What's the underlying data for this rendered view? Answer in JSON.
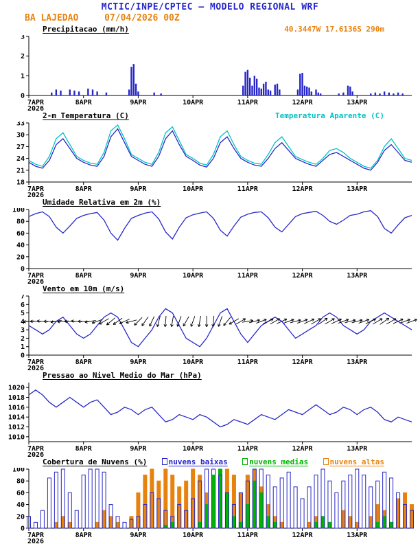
{
  "header": {
    "title": "MCTIC/INPE/CPTEC — MODELO REGIONAL WRF",
    "station": "BA LAJEDAO",
    "run": "07/04/2026 00Z",
    "location": "40.3447W 17.6136S 290m"
  },
  "colors": {
    "blue": "#2626c9",
    "cyan": "#00c2c2",
    "orange": "#e8820e",
    "green": "#00b400",
    "black": "#000000"
  },
  "x_axis": {
    "t_max": 168,
    "step_hours": 3,
    "ticks": [
      {
        "t": 0,
        "label": "7APR",
        "sub": "2026"
      },
      {
        "t": 24,
        "label": "8APR"
      },
      {
        "t": 48,
        "label": "9APR"
      },
      {
        "t": 72,
        "label": "10APR"
      },
      {
        "t": 96,
        "label": "11APR"
      },
      {
        "t": 120,
        "label": "12APR"
      },
      {
        "t": 144,
        "label": "13APR"
      }
    ]
  },
  "chart_data": [
    {
      "type": "bar",
      "title": "Precipitacao (mm/h)",
      "ylabel": "mm/h",
      "ylim": [
        0,
        3
      ],
      "yticks": [
        0,
        1,
        2,
        3
      ],
      "series": [
        {
          "name": "precipitacao",
          "color_key": "blue",
          "points": [
            [
              10,
              0.15
            ],
            [
              12,
              0.3
            ],
            [
              14,
              0.25
            ],
            [
              18,
              0.3
            ],
            [
              20,
              0.25
            ],
            [
              22,
              0.2
            ],
            [
              26,
              0.35
            ],
            [
              28,
              0.3
            ],
            [
              30,
              0.2
            ],
            [
              34,
              0.15
            ],
            [
              44,
              0.3
            ],
            [
              45,
              1.45
            ],
            [
              46,
              1.6
            ],
            [
              47,
              0.6
            ],
            [
              48,
              0.2
            ],
            [
              55,
              0.15
            ],
            [
              58,
              0.1
            ],
            [
              94,
              0.5
            ],
            [
              95,
              1.2
            ],
            [
              96,
              1.3
            ],
            [
              97,
              0.9
            ],
            [
              98,
              0.5
            ],
            [
              99,
              1.0
            ],
            [
              100,
              0.85
            ],
            [
              101,
              0.4
            ],
            [
              102,
              0.35
            ],
            [
              103,
              0.6
            ],
            [
              104,
              0.7
            ],
            [
              105,
              0.3
            ],
            [
              106,
              0.25
            ],
            [
              108,
              0.55
            ],
            [
              109,
              0.6
            ],
            [
              110,
              0.3
            ],
            [
              118,
              0.3
            ],
            [
              119,
              1.1
            ],
            [
              120,
              1.15
            ],
            [
              121,
              0.5
            ],
            [
              122,
              0.45
            ],
            [
              123,
              0.4
            ],
            [
              124,
              0.2
            ],
            [
              126,
              0.3
            ],
            [
              127,
              0.15
            ],
            [
              128,
              0.1
            ],
            [
              136,
              0.1
            ],
            [
              138,
              0.15
            ],
            [
              140,
              0.5
            ],
            [
              141,
              0.45
            ],
            [
              142,
              0.2
            ],
            [
              150,
              0.1
            ],
            [
              152,
              0.15
            ],
            [
              154,
              0.1
            ],
            [
              156,
              0.2
            ],
            [
              158,
              0.15
            ],
            [
              160,
              0.1
            ],
            [
              162,
              0.15
            ],
            [
              164,
              0.1
            ]
          ]
        }
      ]
    },
    {
      "type": "line",
      "title": "2-m Temperatura (C)",
      "right_label": "Temperatura Aparente (C)",
      "ylim": [
        18,
        33
      ],
      "yticks": [
        18,
        21,
        24,
        27,
        30,
        33
      ],
      "series": [
        {
          "name": "temperatura_aparente",
          "color_key": "cyan",
          "values": [
            23.5,
            22.5,
            22,
            24.5,
            29,
            30.5,
            27.5,
            24.5,
            23.5,
            22.8,
            22.5,
            25.5,
            31,
            32.5,
            29,
            25,
            24,
            23,
            22.5,
            25.5,
            30.5,
            32,
            28.5,
            25,
            24,
            22.8,
            22.3,
            25,
            29.5,
            31,
            27.5,
            24.5,
            23.5,
            22.8,
            22.5,
            25,
            28,
            29.5,
            27,
            24.5,
            23.7,
            23,
            22.5,
            24,
            26,
            26.5,
            25.5,
            24,
            23,
            22,
            21.5,
            23.5,
            27,
            29,
            26.5,
            24,
            23.5
          ]
        },
        {
          "name": "temperatura_2m",
          "color_key": "blue",
          "values": [
            23,
            22,
            21.5,
            23.5,
            27.5,
            29,
            26.5,
            24,
            23,
            22.3,
            22,
            24.5,
            29.5,
            31.5,
            28,
            24.5,
            23.5,
            22.5,
            22,
            24.5,
            29,
            31,
            27.5,
            24.5,
            23.5,
            22.3,
            21.8,
            24,
            28,
            29.5,
            26.5,
            24,
            23,
            22.3,
            22,
            24,
            26.5,
            28,
            26,
            24,
            23.2,
            22.5,
            22,
            23.5,
            25,
            25.5,
            24.5,
            23.5,
            22.5,
            21.5,
            21,
            23,
            26,
            27.5,
            25.5,
            23.5,
            23
          ]
        }
      ]
    },
    {
      "type": "line",
      "title": "Umidade Relativa em 2m (%)",
      "ylim": [
        0,
        100
      ],
      "yticks": [
        0,
        20,
        40,
        60,
        80,
        100
      ],
      "series": [
        {
          "name": "umidade_relativa",
          "color_key": "blue",
          "values": [
            88,
            93,
            96,
            88,
            70,
            60,
            72,
            85,
            90,
            93,
            95,
            82,
            60,
            48,
            68,
            85,
            90,
            94,
            96,
            84,
            62,
            50,
            70,
            86,
            91,
            94,
            96,
            85,
            65,
            55,
            72,
            87,
            92,
            95,
            96,
            86,
            70,
            62,
            75,
            88,
            93,
            95,
            97,
            90,
            80,
            75,
            82,
            90,
            92,
            96,
            98,
            88,
            68,
            60,
            74,
            86,
            90
          ]
        }
      ]
    },
    {
      "type": "line",
      "title": "Vento em 10m (m/s)",
      "ylim": [
        0,
        7
      ],
      "yticks": [
        0,
        1,
        2,
        3,
        4,
        5,
        6,
        7
      ],
      "series": [
        {
          "name": "velocidade_vento",
          "color_key": "blue",
          "values": [
            3.5,
            3,
            2.5,
            3,
            4,
            4.5,
            3.5,
            2.5,
            2,
            2.5,
            3.5,
            4.5,
            5,
            4.5,
            3,
            1.5,
            1,
            2,
            3,
            4.5,
            5.5,
            5,
            3.5,
            2,
            1.5,
            1,
            2,
            3.5,
            5,
            5.5,
            4,
            2.5,
            1.5,
            2.5,
            3.5,
            4,
            4.5,
            4,
            3,
            2,
            2.5,
            3,
            3.5,
            4.5,
            5,
            4.5,
            3.5,
            3,
            2.5,
            3,
            4,
            4.5,
            5,
            4.5,
            4,
            3.5,
            3
          ]
        }
      ],
      "arrows": {
        "name": "direcao_vento",
        "anchor": 4.0,
        "directions_deg": [
          185,
          180,
          175,
          180,
          190,
          185,
          180,
          175,
          180,
          190,
          200,
          210,
          220,
          215,
          205,
          195,
          225,
          235,
          245,
          255,
          265,
          260,
          250,
          240,
          250,
          260,
          270,
          265,
          250,
          230,
          210,
          30,
          10,
          15,
          20,
          25,
          30,
          25,
          20,
          15,
          20,
          25,
          30,
          35,
          30,
          25,
          20,
          15,
          15,
          20,
          25,
          30,
          35,
          30,
          25,
          20,
          20
        ]
      }
    },
    {
      "type": "line",
      "title": "Pressao ao Nivel Medio do Mar (hPa)",
      "ylim": [
        1009,
        1021
      ],
      "yticks": [
        1010,
        1012,
        1014,
        1016,
        1018,
        1020
      ],
      "series": [
        {
          "name": "pressao_nivel_mar",
          "color_key": "blue",
          "values": [
            1018.5,
            1019.5,
            1018.5,
            1017,
            1016,
            1017,
            1018,
            1017,
            1016,
            1017,
            1017.5,
            1016,
            1014.5,
            1015,
            1016,
            1015.5,
            1014.5,
            1015.5,
            1016,
            1014.5,
            1013,
            1013.5,
            1014.5,
            1014,
            1013.5,
            1014.5,
            1014,
            1013,
            1012,
            1012.5,
            1013.5,
            1013,
            1012.5,
            1013.5,
            1014.5,
            1014,
            1013.5,
            1014.5,
            1015.5,
            1015,
            1014.5,
            1015.5,
            1016.5,
            1015.5,
            1014.5,
            1015,
            1016,
            1015.5,
            1014.5,
            1015.5,
            1016,
            1015,
            1013.5,
            1013,
            1014,
            1013.5,
            1013
          ]
        }
      ]
    },
    {
      "type": "bar",
      "title": "Cobertura de Nuvens (%)",
      "ylim": [
        0,
        100
      ],
      "yticks": [
        0,
        20,
        40,
        60,
        80,
        100
      ],
      "legend": [
        {
          "label": "nuvens baixas",
          "color_key": "blue"
        },
        {
          "label": "nuvens medias",
          "color_key": "green"
        },
        {
          "label": "nuvens altas",
          "color_key": "orange"
        }
      ],
      "series": [
        {
          "name": "nuvens_altas",
          "color_key": "orange",
          "fill": true,
          "values": [
            0,
            0,
            0,
            0,
            10,
            20,
            10,
            0,
            0,
            0,
            10,
            30,
            20,
            10,
            0,
            20,
            60,
            90,
            100,
            80,
            100,
            90,
            70,
            80,
            100,
            90,
            60,
            40,
            80,
            100,
            90,
            60,
            90,
            100,
            70,
            40,
            20,
            10,
            0,
            0,
            0,
            10,
            20,
            10,
            0,
            0,
            30,
            20,
            10,
            0,
            20,
            40,
            30,
            10,
            50,
            60,
            40
          ]
        },
        {
          "name": "nuvens_medias",
          "color_key": "green",
          "fill": true,
          "values": [
            0,
            0,
            0,
            0,
            0,
            0,
            0,
            0,
            0,
            0,
            0,
            0,
            0,
            0,
            0,
            0,
            0,
            0,
            0,
            0,
            5,
            10,
            0,
            0,
            0,
            10,
            40,
            90,
            100,
            60,
            20,
            10,
            40,
            80,
            60,
            20,
            10,
            0,
            0,
            0,
            0,
            0,
            10,
            20,
            10,
            0,
            0,
            0,
            0,
            0,
            0,
            10,
            20,
            10,
            0,
            0,
            0
          ]
        },
        {
          "name": "nuvens_baixas",
          "color_key": "blue",
          "fill": false,
          "values": [
            20,
            10,
            30,
            85,
            95,
            100,
            60,
            30,
            90,
            100,
            100,
            95,
            40,
            20,
            10,
            15,
            20,
            40,
            60,
            50,
            30,
            20,
            40,
            30,
            50,
            80,
            100,
            100,
            90,
            60,
            40,
            60,
            80,
            100,
            100,
            90,
            70,
            85,
            95,
            70,
            50,
            70,
            90,
            100,
            80,
            60,
            80,
            90,
            100,
            90,
            70,
            80,
            95,
            85,
            60,
            40,
            30
          ]
        }
      ]
    }
  ]
}
